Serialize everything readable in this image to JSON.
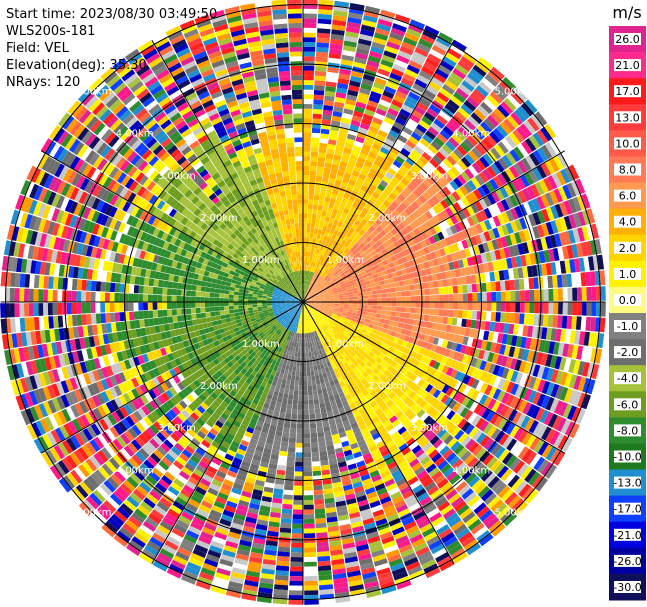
{
  "info": {
    "start_time": "Start time: 2023/08/30 03:49:50",
    "instrument": "WLS200s-181",
    "field": "Field: VEL",
    "elevation": "Elevation(deg): 35.30",
    "nrays": "NRays: 120"
  },
  "range_labels": {
    "r1": "1.00km",
    "r2": "2.00km",
    "r3": "3.00km",
    "r4": "4.00km",
    "r5": "5.00km"
  },
  "colorbar": {
    "unit": "m/s",
    "ticks": [
      "26.0",
      "21.0",
      "17.0",
      "13.0",
      "10.0",
      "8.0",
      "6.0",
      "4.0",
      "2.0",
      "1.0",
      "0.0",
      "-1.0",
      "-2.0",
      "-4.0",
      "-6.0",
      "-8.0",
      "-10.0",
      "-13.0",
      "-17.0",
      "-21.0",
      "-26.0",
      "-30.0"
    ],
    "colors": [
      "#e0248f",
      "#ff2b8c",
      "#ff1a1a",
      "#ff3b3b",
      "#ff5a4a",
      "#ff7a55",
      "#ff9a50",
      "#ffb000",
      "#ffd500",
      "#fff200",
      "#fffa80",
      "#808080",
      "#6e6e6e",
      "#a6c23a",
      "#6e9e20",
      "#2e8b2e",
      "#1f7a1f",
      "#1f8fcf",
      "#1040ff",
      "#0000e0",
      "#0000a0",
      "#10105a"
    ]
  },
  "map": {
    "field": "VEL",
    "range_rings_km": [
      1,
      2,
      3,
      4,
      5
    ],
    "n_rays": 120,
    "elevation_deg": 35.3
  }
}
